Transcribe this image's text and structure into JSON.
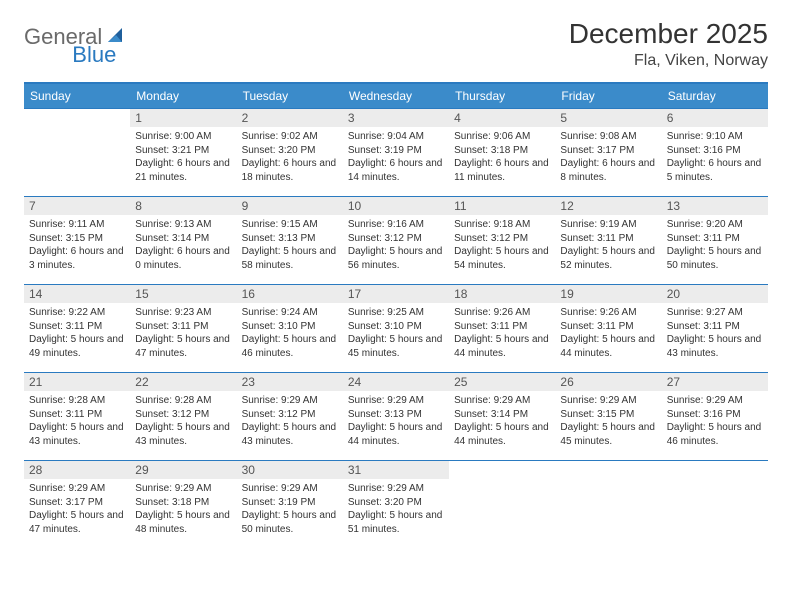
{
  "logo": {
    "text_gray": "General",
    "text_blue": "Blue"
  },
  "title": "December 2025",
  "location": "Fla, Viken, Norway",
  "colors": {
    "header_bg": "#3b8bca",
    "header_text": "#ffffff",
    "row_divider": "#2a7ac0",
    "daynum_bg": "#ececec",
    "daynum_text": "#555555",
    "body_text": "#333333",
    "logo_gray": "#6a6a6a",
    "logo_blue": "#2a7ac0",
    "background": "#ffffff"
  },
  "typography": {
    "title_fontsize": 28,
    "location_fontsize": 16,
    "dayhead_fontsize": 12,
    "daynum_fontsize": 12,
    "dayinfo_fontsize": 10
  },
  "day_headers": [
    "Sunday",
    "Monday",
    "Tuesday",
    "Wednesday",
    "Thursday",
    "Friday",
    "Saturday"
  ],
  "weeks": [
    [
      null,
      {
        "n": "1",
        "sr": "Sunrise: 9:00 AM",
        "ss": "Sunset: 3:21 PM",
        "dl": "Daylight: 6 hours and 21 minutes."
      },
      {
        "n": "2",
        "sr": "Sunrise: 9:02 AM",
        "ss": "Sunset: 3:20 PM",
        "dl": "Daylight: 6 hours and 18 minutes."
      },
      {
        "n": "3",
        "sr": "Sunrise: 9:04 AM",
        "ss": "Sunset: 3:19 PM",
        "dl": "Daylight: 6 hours and 14 minutes."
      },
      {
        "n": "4",
        "sr": "Sunrise: 9:06 AM",
        "ss": "Sunset: 3:18 PM",
        "dl": "Daylight: 6 hours and 11 minutes."
      },
      {
        "n": "5",
        "sr": "Sunrise: 9:08 AM",
        "ss": "Sunset: 3:17 PM",
        "dl": "Daylight: 6 hours and 8 minutes."
      },
      {
        "n": "6",
        "sr": "Sunrise: 9:10 AM",
        "ss": "Sunset: 3:16 PM",
        "dl": "Daylight: 6 hours and 5 minutes."
      }
    ],
    [
      {
        "n": "7",
        "sr": "Sunrise: 9:11 AM",
        "ss": "Sunset: 3:15 PM",
        "dl": "Daylight: 6 hours and 3 minutes."
      },
      {
        "n": "8",
        "sr": "Sunrise: 9:13 AM",
        "ss": "Sunset: 3:14 PM",
        "dl": "Daylight: 6 hours and 0 minutes."
      },
      {
        "n": "9",
        "sr": "Sunrise: 9:15 AM",
        "ss": "Sunset: 3:13 PM",
        "dl": "Daylight: 5 hours and 58 minutes."
      },
      {
        "n": "10",
        "sr": "Sunrise: 9:16 AM",
        "ss": "Sunset: 3:12 PM",
        "dl": "Daylight: 5 hours and 56 minutes."
      },
      {
        "n": "11",
        "sr": "Sunrise: 9:18 AM",
        "ss": "Sunset: 3:12 PM",
        "dl": "Daylight: 5 hours and 54 minutes."
      },
      {
        "n": "12",
        "sr": "Sunrise: 9:19 AM",
        "ss": "Sunset: 3:11 PM",
        "dl": "Daylight: 5 hours and 52 minutes."
      },
      {
        "n": "13",
        "sr": "Sunrise: 9:20 AM",
        "ss": "Sunset: 3:11 PM",
        "dl": "Daylight: 5 hours and 50 minutes."
      }
    ],
    [
      {
        "n": "14",
        "sr": "Sunrise: 9:22 AM",
        "ss": "Sunset: 3:11 PM",
        "dl": "Daylight: 5 hours and 49 minutes."
      },
      {
        "n": "15",
        "sr": "Sunrise: 9:23 AM",
        "ss": "Sunset: 3:11 PM",
        "dl": "Daylight: 5 hours and 47 minutes."
      },
      {
        "n": "16",
        "sr": "Sunrise: 9:24 AM",
        "ss": "Sunset: 3:10 PM",
        "dl": "Daylight: 5 hours and 46 minutes."
      },
      {
        "n": "17",
        "sr": "Sunrise: 9:25 AM",
        "ss": "Sunset: 3:10 PM",
        "dl": "Daylight: 5 hours and 45 minutes."
      },
      {
        "n": "18",
        "sr": "Sunrise: 9:26 AM",
        "ss": "Sunset: 3:11 PM",
        "dl": "Daylight: 5 hours and 44 minutes."
      },
      {
        "n": "19",
        "sr": "Sunrise: 9:26 AM",
        "ss": "Sunset: 3:11 PM",
        "dl": "Daylight: 5 hours and 44 minutes."
      },
      {
        "n": "20",
        "sr": "Sunrise: 9:27 AM",
        "ss": "Sunset: 3:11 PM",
        "dl": "Daylight: 5 hours and 43 minutes."
      }
    ],
    [
      {
        "n": "21",
        "sr": "Sunrise: 9:28 AM",
        "ss": "Sunset: 3:11 PM",
        "dl": "Daylight: 5 hours and 43 minutes."
      },
      {
        "n": "22",
        "sr": "Sunrise: 9:28 AM",
        "ss": "Sunset: 3:12 PM",
        "dl": "Daylight: 5 hours and 43 minutes."
      },
      {
        "n": "23",
        "sr": "Sunrise: 9:29 AM",
        "ss": "Sunset: 3:12 PM",
        "dl": "Daylight: 5 hours and 43 minutes."
      },
      {
        "n": "24",
        "sr": "Sunrise: 9:29 AM",
        "ss": "Sunset: 3:13 PM",
        "dl": "Daylight: 5 hours and 44 minutes."
      },
      {
        "n": "25",
        "sr": "Sunrise: 9:29 AM",
        "ss": "Sunset: 3:14 PM",
        "dl": "Daylight: 5 hours and 44 minutes."
      },
      {
        "n": "26",
        "sr": "Sunrise: 9:29 AM",
        "ss": "Sunset: 3:15 PM",
        "dl": "Daylight: 5 hours and 45 minutes."
      },
      {
        "n": "27",
        "sr": "Sunrise: 9:29 AM",
        "ss": "Sunset: 3:16 PM",
        "dl": "Daylight: 5 hours and 46 minutes."
      }
    ],
    [
      {
        "n": "28",
        "sr": "Sunrise: 9:29 AM",
        "ss": "Sunset: 3:17 PM",
        "dl": "Daylight: 5 hours and 47 minutes."
      },
      {
        "n": "29",
        "sr": "Sunrise: 9:29 AM",
        "ss": "Sunset: 3:18 PM",
        "dl": "Daylight: 5 hours and 48 minutes."
      },
      {
        "n": "30",
        "sr": "Sunrise: 9:29 AM",
        "ss": "Sunset: 3:19 PM",
        "dl": "Daylight: 5 hours and 50 minutes."
      },
      {
        "n": "31",
        "sr": "Sunrise: 9:29 AM",
        "ss": "Sunset: 3:20 PM",
        "dl": "Daylight: 5 hours and 51 minutes."
      },
      null,
      null,
      null
    ]
  ]
}
